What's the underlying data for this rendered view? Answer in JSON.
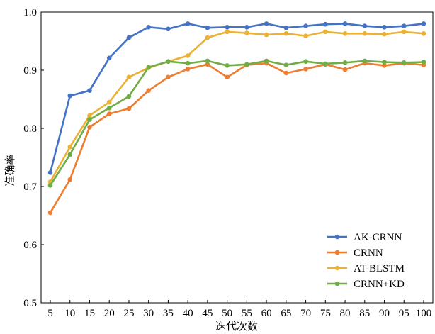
{
  "chart_data": {
    "type": "line",
    "title": "",
    "xlabel": "迭代次数",
    "ylabel": "准确率",
    "x": [
      5,
      10,
      15,
      20,
      25,
      30,
      35,
      40,
      45,
      50,
      55,
      60,
      65,
      70,
      75,
      80,
      85,
      90,
      95,
      100
    ],
    "xticks": [
      "5",
      "10",
      "15",
      "20",
      "25",
      "30",
      "35",
      "40",
      "45",
      "50",
      "55",
      "60",
      "65",
      "70",
      "75",
      "80",
      "85",
      "90",
      "95",
      "100"
    ],
    "yticks": [
      "0.5",
      "0.6",
      "0.7",
      "0.8",
      "0.9",
      "1.0"
    ],
    "ylim": [
      0.5,
      1.0
    ],
    "grid": false,
    "legend_position": "bottom-right",
    "series": [
      {
        "name": "AK-CRNN",
        "color": "#4472c4",
        "values": [
          0.724,
          0.856,
          0.865,
          0.921,
          0.956,
          0.974,
          0.971,
          0.98,
          0.973,
          0.974,
          0.974,
          0.98,
          0.973,
          0.976,
          0.979,
          0.98,
          0.976,
          0.974,
          0.976,
          0.98
        ]
      },
      {
        "name": "CRNN",
        "color": "#ed7d31",
        "values": [
          0.655,
          0.712,
          0.802,
          0.825,
          0.834,
          0.865,
          0.888,
          0.902,
          0.91,
          0.888,
          0.909,
          0.912,
          0.895,
          0.902,
          0.91,
          0.901,
          0.912,
          0.908,
          0.912,
          0.909
        ]
      },
      {
        "name": "AT-BLSTM",
        "color": "#ebb135",
        "values": [
          0.708,
          0.768,
          0.822,
          0.845,
          0.888,
          0.904,
          0.915,
          0.925,
          0.956,
          0.966,
          0.964,
          0.961,
          0.963,
          0.959,
          0.966,
          0.963,
          0.963,
          0.962,
          0.966,
          0.963
        ]
      },
      {
        "name": "CRNN+KD",
        "color": "#70ad47",
        "values": [
          0.702,
          0.755,
          0.815,
          0.835,
          0.855,
          0.905,
          0.915,
          0.912,
          0.916,
          0.908,
          0.91,
          0.916,
          0.909,
          0.915,
          0.911,
          0.913,
          0.916,
          0.914,
          0.913,
          0.914
        ]
      }
    ]
  }
}
